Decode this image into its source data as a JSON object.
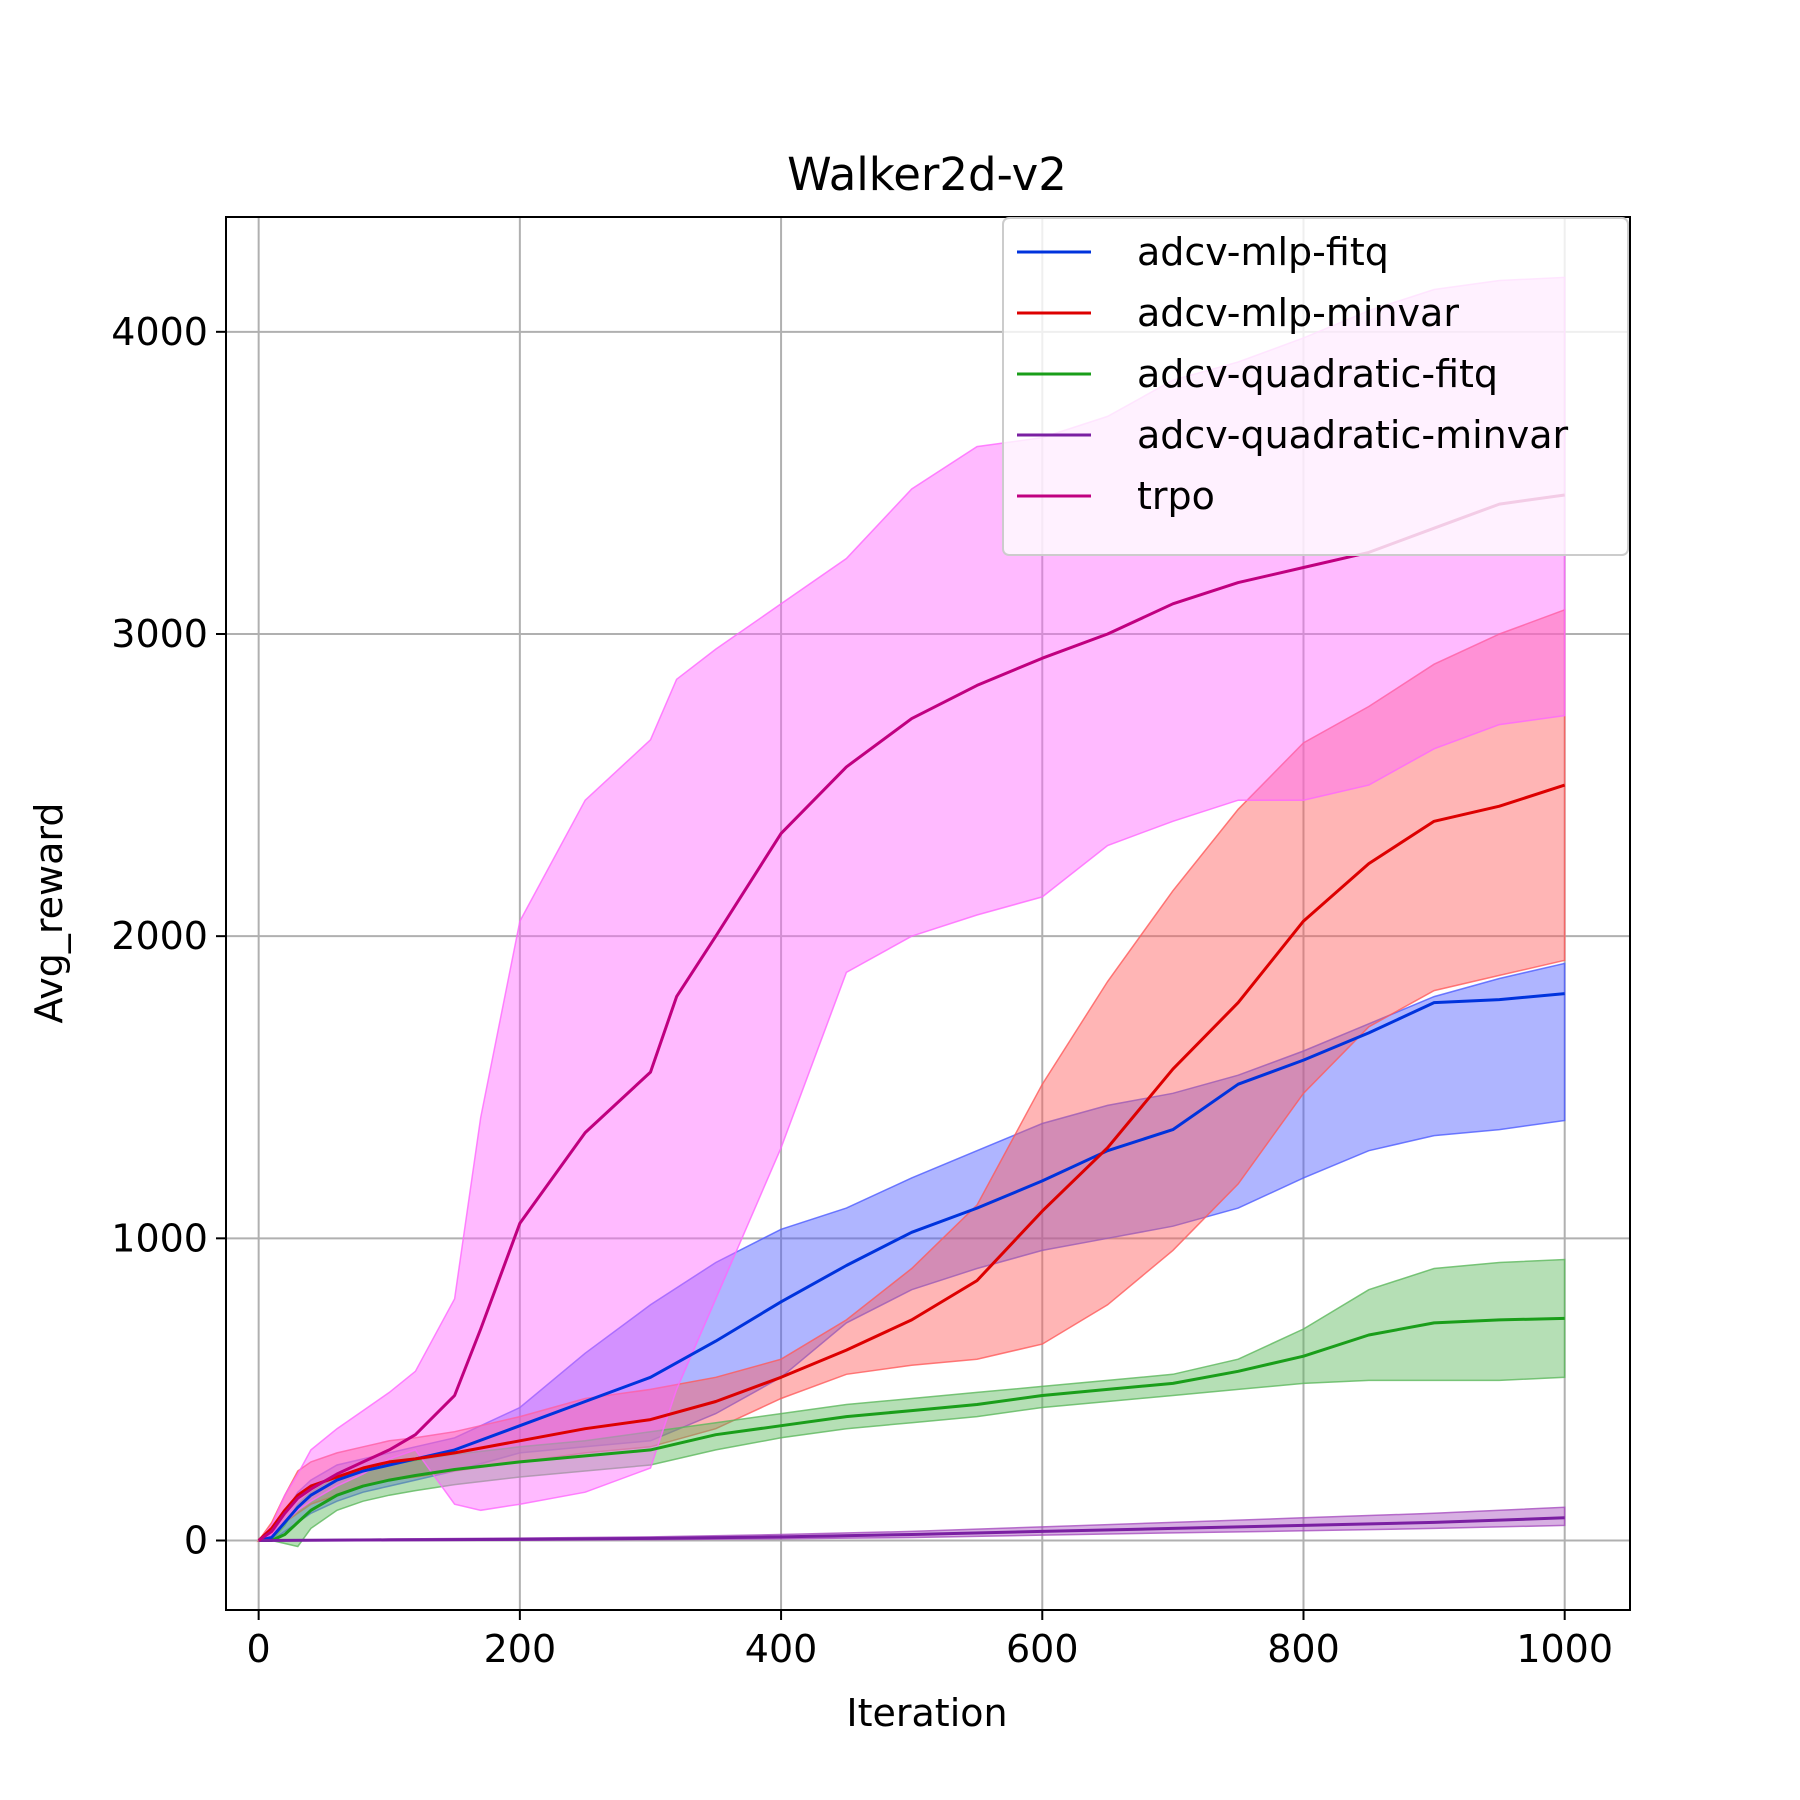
{
  "chart_data": {
    "type": "line",
    "title": "Walker2d-v2",
    "xlabel": "Iteration",
    "ylabel": "Avg_reward",
    "xlim": [
      -25,
      1050
    ],
    "ylim": [
      -230,
      4380
    ],
    "xticks": [
      0,
      200,
      400,
      600,
      800,
      1000
    ],
    "yticks": [
      0,
      1000,
      2000,
      3000,
      4000
    ],
    "xtick_labels": [
      "0",
      "200",
      "400",
      "600",
      "800",
      "1000"
    ],
    "ytick_labels": [
      "0",
      "1000",
      "2000",
      "3000",
      "4000"
    ],
    "grid": true,
    "legend_position": "top-right",
    "series": [
      {
        "name": "adcv-mlp-fitq",
        "color": "#0033dd",
        "band_color": "#4d5cff",
        "x": [
          0,
          10,
          20,
          30,
          40,
          60,
          80,
          100,
          120,
          150,
          200,
          250,
          300,
          350,
          400,
          450,
          500,
          550,
          600,
          650,
          700,
          750,
          800,
          850,
          900,
          950,
          1000
        ],
        "y": [
          0,
          10,
          60,
          110,
          150,
          200,
          230,
          250,
          270,
          300,
          380,
          460,
          540,
          660,
          790,
          910,
          1020,
          1100,
          1190,
          1290,
          1360,
          1510,
          1590,
          1680,
          1780,
          1790,
          1810
        ],
        "upper": [
          0,
          20,
          90,
          160,
          200,
          250,
          270,
          290,
          310,
          340,
          440,
          620,
          780,
          920,
          1030,
          1100,
          1200,
          1290,
          1380,
          1440,
          1480,
          1540,
          1620,
          1710,
          1800,
          1860,
          1910
        ],
        "lower": [
          0,
          0,
          30,
          60,
          90,
          130,
          160,
          180,
          200,
          230,
          290,
          310,
          330,
          420,
          540,
          720,
          830,
          900,
          960,
          1000,
          1040,
          1100,
          1200,
          1290,
          1340,
          1360,
          1390
        ]
      },
      {
        "name": "adcv-mlp-minvar",
        "color": "#dd0000",
        "band_color": "#ff5a5a",
        "x": [
          0,
          10,
          20,
          30,
          40,
          60,
          80,
          100,
          120,
          150,
          200,
          250,
          300,
          350,
          400,
          450,
          500,
          550,
          600,
          650,
          700,
          750,
          800,
          850,
          900,
          950,
          1000
        ],
        "y": [
          0,
          40,
          100,
          150,
          180,
          210,
          240,
          260,
          270,
          290,
          330,
          370,
          400,
          460,
          540,
          630,
          730,
          860,
          1090,
          1300,
          1560,
          1780,
          2050,
          2240,
          2380,
          2430,
          2500
        ],
        "upper": [
          0,
          60,
          150,
          230,
          260,
          290,
          310,
          330,
          340,
          360,
          410,
          470,
          500,
          540,
          600,
          730,
          900,
          1110,
          1510,
          1850,
          2150,
          2420,
          2640,
          2760,
          2900,
          3000,
          3080
        ],
        "lower": [
          0,
          20,
          60,
          90,
          120,
          150,
          180,
          200,
          210,
          230,
          260,
          290,
          310,
          370,
          470,
          550,
          580,
          600,
          650,
          780,
          960,
          1180,
          1480,
          1700,
          1820,
          1870,
          1920
        ]
      },
      {
        "name": "adcv-quadratic-fitq",
        "color": "#1a9e1a",
        "band_color": "#5cb85c",
        "x": [
          0,
          10,
          20,
          30,
          40,
          60,
          80,
          100,
          120,
          150,
          200,
          250,
          300,
          350,
          400,
          450,
          500,
          550,
          600,
          650,
          700,
          750,
          800,
          850,
          900,
          950,
          1000
        ],
        "y": [
          0,
          0,
          20,
          60,
          100,
          150,
          180,
          200,
          215,
          235,
          260,
          280,
          300,
          350,
          380,
          410,
          430,
          450,
          480,
          500,
          520,
          560,
          610,
          680,
          720,
          730,
          735
        ],
        "upper": [
          0,
          0,
          50,
          120,
          160,
          210,
          230,
          250,
          265,
          285,
          310,
          330,
          360,
          390,
          420,
          450,
          470,
          490,
          510,
          530,
          550,
          600,
          700,
          830,
          900,
          920,
          930
        ],
        "lower": [
          0,
          0,
          -10,
          -20,
          40,
          100,
          130,
          150,
          165,
          185,
          210,
          230,
          250,
          300,
          340,
          370,
          390,
          410,
          440,
          460,
          480,
          500,
          520,
          530,
          530,
          530,
          540
        ]
      },
      {
        "name": "adcv-quadratic-minvar",
        "color": "#7a1fa2",
        "band_color": "#a64dbf",
        "x": [
          0,
          100,
          200,
          300,
          400,
          500,
          600,
          700,
          800,
          900,
          1000
        ],
        "y": [
          0,
          2,
          4,
          7,
          12,
          20,
          30,
          40,
          50,
          60,
          75
        ],
        "upper": [
          0,
          5,
          8,
          12,
          20,
          30,
          45,
          60,
          75,
          90,
          110
        ],
        "lower": [
          0,
          0,
          1,
          3,
          6,
          10,
          18,
          25,
          32,
          40,
          50
        ]
      },
      {
        "name": "trpo",
        "color": "#c00080",
        "band_color": "#ff66ff",
        "x": [
          0,
          10,
          20,
          30,
          40,
          60,
          80,
          100,
          120,
          150,
          170,
          200,
          250,
          300,
          320,
          350,
          400,
          450,
          500,
          550,
          600,
          650,
          700,
          750,
          800,
          850,
          900,
          950,
          1000
        ],
        "y": [
          0,
          30,
          90,
          140,
          170,
          220,
          260,
          300,
          350,
          480,
          700,
          1050,
          1350,
          1550,
          1800,
          2000,
          2340,
          2560,
          2720,
          2830,
          2920,
          3000,
          3100,
          3170,
          3220,
          3270,
          3350,
          3430,
          3460
        ],
        "upper": [
          0,
          50,
          150,
          220,
          300,
          370,
          430,
          490,
          560,
          800,
          1400,
          2050,
          2450,
          2650,
          2850,
          2950,
          3100,
          3250,
          3480,
          3620,
          3650,
          3720,
          3840,
          3900,
          3980,
          4070,
          4140,
          4170,
          4180
        ],
        "lower": [
          0,
          20,
          60,
          100,
          130,
          180,
          220,
          270,
          300,
          120,
          100,
          120,
          160,
          240,
          500,
          800,
          1300,
          1880,
          2000,
          2070,
          2130,
          2300,
          2380,
          2450,
          2450,
          2500,
          2620,
          2700,
          2730
        ]
      }
    ]
  }
}
